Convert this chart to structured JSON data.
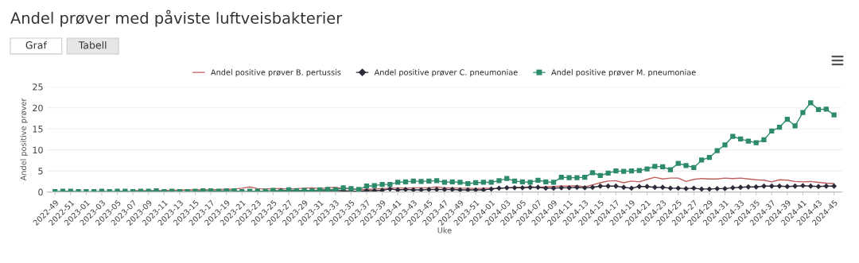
{
  "chart_data": {
    "type": "line",
    "title": "Andel prøver med påviste luftveisbakterier",
    "annotations": [
      "Graf",
      "Tabell"
    ],
    "xlabel": "Uke",
    "ylabel": "Andel positive prøver",
    "ylim": [
      0,
      25
    ],
    "yticks": [
      0,
      5,
      10,
      15,
      20,
      25
    ],
    "grid": "y",
    "legend": "top",
    "categories": [
      "2022-49",
      null,
      "2022-51",
      null,
      "2023-01",
      null,
      "2023-03",
      null,
      "2023-05",
      null,
      "2023-07",
      null,
      "2023-09",
      null,
      "2023-11",
      null,
      "2023-13",
      null,
      "2023-15",
      null,
      "2023-17",
      null,
      "2023-19",
      null,
      "2023-21",
      null,
      "2023-23",
      null,
      "2023-25",
      null,
      "2023-27",
      null,
      "2023-29",
      null,
      "2023-31",
      null,
      "2023-33",
      null,
      "2023-35",
      null,
      "2023-37",
      null,
      "2023-39",
      null,
      "2023-41",
      null,
      "2023-43",
      null,
      "2023-45",
      null,
      "2023-47",
      null,
      "2023-49",
      null,
      "2023-51",
      null,
      "2024-01",
      null,
      "2024-03",
      null,
      "2024-05",
      null,
      "2024-07",
      null,
      "2024-09",
      null,
      "2024-11",
      null,
      "2024-13",
      null,
      "2024-15",
      null,
      "2024-17",
      null,
      "2024-19",
      null,
      "2024-21",
      null,
      "2024-23",
      null,
      "2024-25",
      null,
      "2024-27",
      null,
      "2024-29",
      null,
      "2024-31",
      null,
      "2024-33",
      null,
      "2024-35",
      null,
      "2024-37",
      null,
      "2024-39",
      null,
      "2024-41",
      null,
      "2024-43",
      null,
      "2024-45"
    ],
    "series": [
      {
        "name": "Andel positive prøver B. pertussis",
        "color": "#c0605e",
        "marker": "none",
        "values": [
          null,
          null,
          null,
          null,
          null,
          null,
          null,
          null,
          null,
          null,
          0.3,
          0.3,
          0.3,
          0.3,
          0.3,
          0.4,
          0.4,
          0.5,
          0.5,
          0.5,
          0.5,
          0.6,
          0.6,
          0.7,
          0.9,
          1.2,
          0.8,
          0.7,
          0.8,
          0.8,
          0.7,
          0.8,
          0.9,
          1.0,
          0.8,
          1.0,
          1.1,
          0.8,
          0.7,
          0.6,
          0.6,
          0.7,
          0.8,
          0.9,
          1.0,
          0.9,
          1.0,
          1.0,
          1.0,
          1.2,
          1.0,
          1.0,
          0.9,
          0.9,
          0.8,
          0.9,
          0.9,
          0.8,
          1.0,
          1.1,
          1.1,
          1.2,
          1.1,
          1.2,
          1.3,
          1.4,
          1.4,
          1.5,
          1.2,
          1.7,
          2.2,
          2.6,
          2.7,
          2.2,
          2.6,
          2.4,
          3.0,
          3.5,
          3.1,
          3.3,
          3.3,
          2.5,
          3.0,
          3.2,
          3.1,
          3.1,
          3.3,
          3.2,
          3.3,
          3.1,
          2.9,
          2.8,
          2.4,
          2.9,
          2.8,
          2.5,
          2.4,
          2.5,
          2.3,
          2.1,
          2.0
        ]
      },
      {
        "name": "Andel positive prøver C. pneumoniae",
        "color": "#2b2b3a",
        "marker": "diamond",
        "values": [
          null,
          null,
          null,
          null,
          null,
          null,
          null,
          null,
          null,
          null,
          null,
          null,
          null,
          null,
          null,
          null,
          null,
          null,
          null,
          null,
          null,
          null,
          null,
          null,
          null,
          null,
          null,
          null,
          0.2,
          0.3,
          0.3,
          0.3,
          0.3,
          0.3,
          0.3,
          0.3,
          0.3,
          0.3,
          0.2,
          0.2,
          0.3,
          0.3,
          0.4,
          0.7,
          0.5,
          0.6,
          0.5,
          0.5,
          0.6,
          0.6,
          0.6,
          0.6,
          0.5,
          0.5,
          0.5,
          0.5,
          0.7,
          0.9,
          1.0,
          1.0,
          1.0,
          1.1,
          1.1,
          0.9,
          0.9,
          1.0,
          1.0,
          1.1,
          1.0,
          1.1,
          1.4,
          1.4,
          1.4,
          1.1,
          0.9,
          1.3,
          1.3,
          1.1,
          1.1,
          0.9,
          0.9,
          0.8,
          0.9,
          0.7,
          0.7,
          0.8,
          0.8,
          1.0,
          1.1,
          1.2,
          1.2,
          1.4,
          1.4,
          1.4,
          1.3,
          1.4,
          1.5,
          1.4,
          1.3,
          1.4,
          1.4
        ]
      },
      {
        "name": "Andel positive prøver M. pneumoniae",
        "color": "#2e8b6a",
        "marker": "square",
        "values": [
          0.1,
          0.2,
          0.2,
          0.1,
          0.1,
          0.1,
          0.2,
          0.1,
          0.2,
          0.2,
          0.1,
          0.2,
          0.2,
          0.3,
          0.1,
          0.2,
          0.1,
          0.1,
          0.2,
          0.3,
          0.3,
          0.2,
          0.3,
          0.3,
          0.1,
          0.2,
          0.2,
          0.2,
          0.4,
          0.1,
          0.5,
          0.3,
          0.4,
          0.3,
          0.5,
          0.6,
          0.5,
          1.0,
          0.8,
          0.6,
          1.4,
          1.5,
          1.8,
          1.8,
          2.3,
          2.4,
          2.6,
          2.5,
          2.6,
          2.7,
          2.3,
          2.4,
          2.3,
          2.0,
          2.2,
          2.3,
          2.3,
          2.7,
          3.2,
          2.6,
          2.4,
          2.3,
          2.8,
          2.4,
          2.3,
          3.5,
          3.4,
          3.4,
          3.5,
          4.6,
          3.9,
          4.5,
          5.0,
          4.9,
          5.0,
          5.1,
          5.5,
          6.1,
          6.0,
          5.3,
          6.8,
          6.3,
          5.8,
          7.6,
          8.2,
          9.8,
          11.2,
          13.2,
          12.6,
          12.1,
          11.7,
          12.4,
          14.5,
          15.4,
          17.3,
          15.7,
          18.9,
          21.2,
          19.6,
          19.7,
          18.3
        ]
      }
    ]
  }
}
